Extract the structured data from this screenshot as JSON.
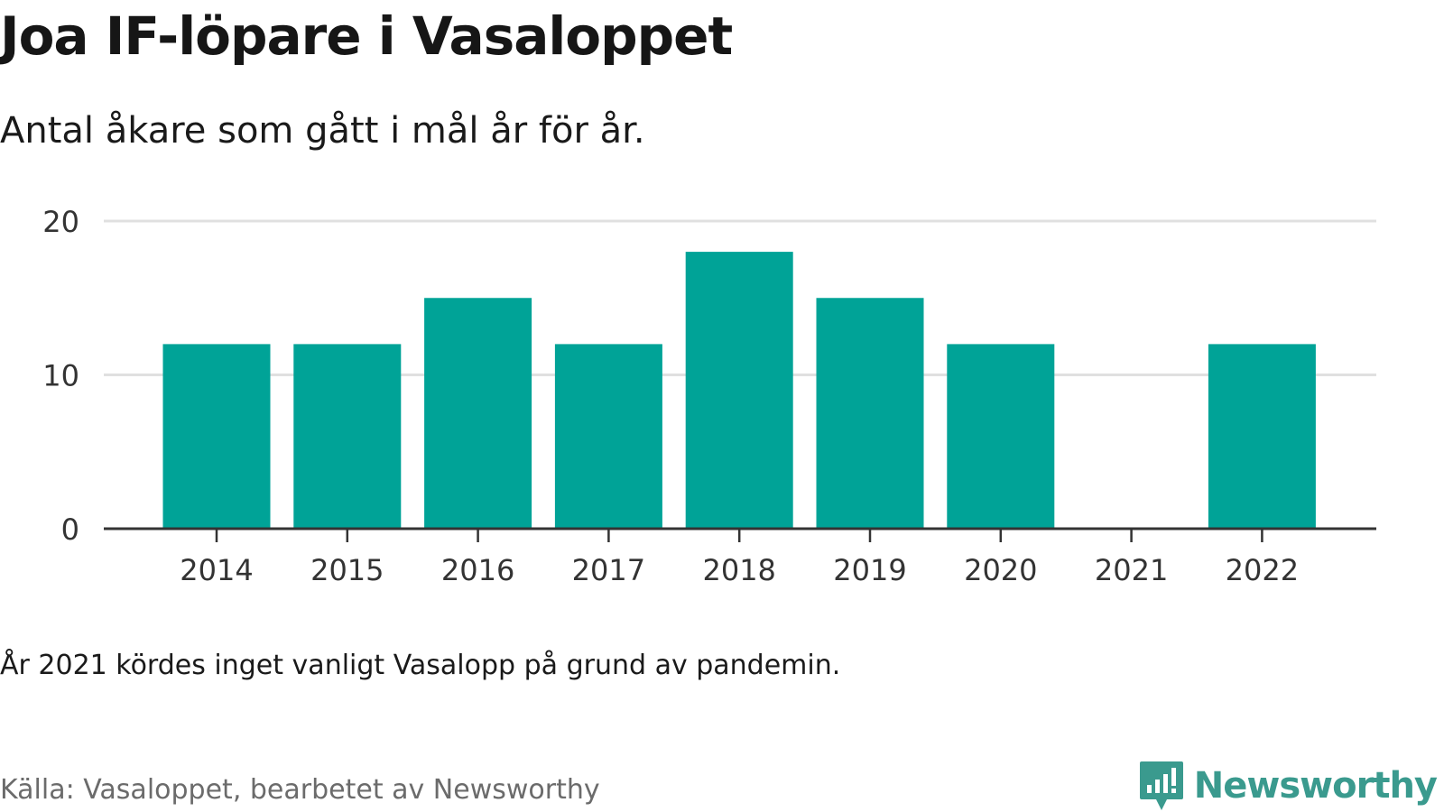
{
  "header": {
    "title": "Joa IF-löpare i Vasaloppet",
    "subtitle": "Antal åkare som gått i mål år för år."
  },
  "footer": {
    "note": "År 2021 kördes inget vanligt Vasalopp på grund av pandemin.",
    "source": "Källa: Vasaloppet, bearbetet av Newsworthy",
    "logo_text": "Newsworthy",
    "logo_icon": "bar-chart-speech-bubble-icon"
  },
  "colors": {
    "bar": "#00a397",
    "gridline": "#e0e0e0",
    "axis": "#333333",
    "tick_label": "#333333",
    "brand": "#3a9a8e"
  },
  "chart_data": {
    "type": "bar",
    "categories": [
      "2014",
      "2015",
      "2016",
      "2017",
      "2018",
      "2019",
      "2020",
      "2021",
      "2022"
    ],
    "values": [
      12,
      12,
      15,
      12,
      18,
      15,
      12,
      null,
      12
    ],
    "ylim": [
      0,
      20
    ],
    "yticks": [
      0,
      10,
      20
    ],
    "title": "",
    "xlabel": "",
    "ylabel": "",
    "grid": "horizontal",
    "legend": "none"
  }
}
